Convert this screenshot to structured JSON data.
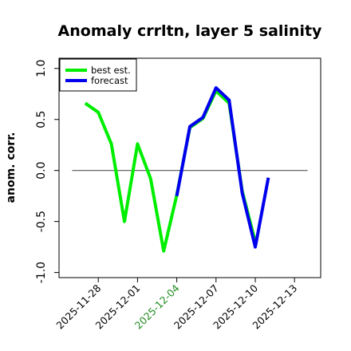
{
  "chart_data": {
    "type": "line",
    "title": "Anomaly crrltn, layer 5 salinity",
    "xlabel": "",
    "ylabel": "anom. corr.",
    "ylim": [
      -1.05,
      1.1
    ],
    "xlim": [
      "2025-11-25",
      "2025-12-15"
    ],
    "yticks": [
      -1.0,
      -0.5,
      0.0,
      0.5,
      1.0
    ],
    "ytick_labels": [
      "-1.0",
      "-0.5",
      "0.0",
      "0.5",
      "1.0"
    ],
    "xticks": [
      {
        "date": "2025-11-28",
        "label": "2025-11-28",
        "color": "#000000"
      },
      {
        "date": "2025-12-01",
        "label": "2025-12-01",
        "color": "#000000"
      },
      {
        "date": "2025-12-04",
        "label": "2025-12-04",
        "color": "#228b22"
      },
      {
        "date": "2025-12-07",
        "label": "2025-12-07",
        "color": "#000000"
      },
      {
        "date": "2025-12-10",
        "label": "2025-12-10",
        "color": "#000000"
      },
      {
        "date": "2025-12-13",
        "label": "2025-12-13",
        "color": "#000000"
      }
    ],
    "reference_line": {
      "y": 0.0,
      "from": "2025-11-26",
      "to": "2025-12-14",
      "color": "#555555"
    },
    "grid": false,
    "legend_position": "top-left",
    "series": [
      {
        "name": "best est.",
        "color": "#00ee00",
        "x": [
          "2025-11-27",
          "2025-11-28",
          "2025-11-29",
          "2025-11-30",
          "2025-12-01",
          "2025-12-02",
          "2025-12-03",
          "2025-12-04",
          "2025-12-05",
          "2025-12-06",
          "2025-12-07",
          "2025-12-08",
          "2025-12-09",
          "2025-12-10"
        ],
        "values": [
          0.66,
          0.57,
          0.26,
          -0.5,
          0.26,
          -0.08,
          -0.79,
          -0.24,
          0.42,
          0.51,
          0.78,
          0.66,
          -0.2,
          -0.7
        ]
      },
      {
        "name": "forecast",
        "color": "#0000ee",
        "x": [
          "2025-12-04",
          "2025-12-05",
          "2025-12-06",
          "2025-12-07",
          "2025-12-08",
          "2025-12-09",
          "2025-12-10",
          "2025-12-11"
        ],
        "values": [
          -0.25,
          0.43,
          0.52,
          0.81,
          0.69,
          -0.22,
          -0.75,
          -0.07
        ]
      }
    ]
  }
}
